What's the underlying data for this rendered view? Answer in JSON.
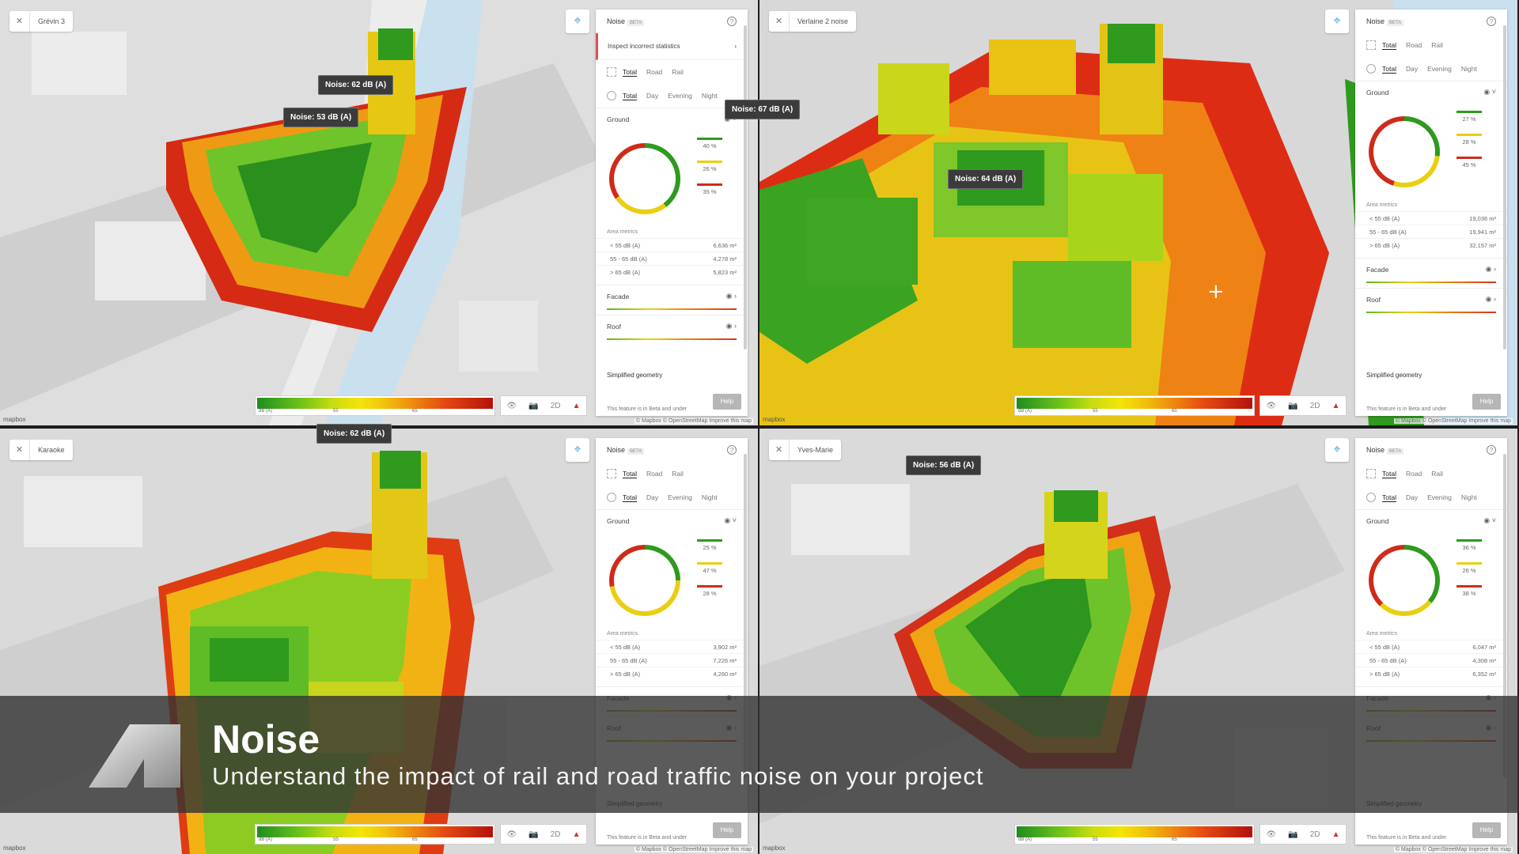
{
  "panel_common": {
    "title": "Noise",
    "beta": "BETA",
    "help_icon": "?",
    "source_tabs": [
      "Total",
      "Road",
      "Rail"
    ],
    "time_tabs": [
      "Total",
      "Day",
      "Evening",
      "Night"
    ],
    "ground_label": "Ground",
    "area_metrics_label": "Area metrics",
    "metric_labels": [
      "< 55 dB (A)",
      "55 - 65 dB (A)",
      "> 65 dB (A)"
    ],
    "facade_label": "Facade",
    "roof_label": "Roof",
    "simplified_geometry": "Simplified geometry",
    "help_label": "Help",
    "beta_note": "This feature is in Beta and under",
    "legend_unit": "dB (A)",
    "legend_ticks": [
      "55",
      "65"
    ],
    "mapbox_label": "mapbox",
    "attribution": "© Mapbox © OpenStreetMap Improve this map",
    "view_2d": "2D"
  },
  "colors": {
    "green": "#2e9a1e",
    "yellow": "#e9cf10",
    "red": "#cf2b1a"
  },
  "quadrants": [
    {
      "site_name": "Grévin 3",
      "inspect_label": "Inspect incorrect statistics",
      "ground_pcts": [
        "40 %",
        "26 %",
        "35 %"
      ],
      "ground_fracs": [
        0.4,
        0.26,
        0.35
      ],
      "metric_values": [
        "6,636 m²",
        "4,278 m²",
        "5,823 m²"
      ],
      "tooltips": [
        "Noise: 62 dB (A)",
        "Noise: 53 dB (A)"
      ]
    },
    {
      "site_name": "Verlaine 2 noise",
      "ground_pcts": [
        "27 %",
        "28 %",
        "45 %"
      ],
      "ground_fracs": [
        0.27,
        0.28,
        0.45
      ],
      "metric_values": [
        "19,036 m²",
        "19,941 m²",
        "32,157 m²"
      ],
      "tooltips": [
        "Noise: 67 dB (A)",
        "Noise: 64 dB (A)"
      ]
    },
    {
      "site_name": "Karaoke",
      "ground_pcts": [
        "25 %",
        "47 %",
        "28 %"
      ],
      "ground_fracs": [
        0.25,
        0.47,
        0.28
      ],
      "metric_values": [
        "3,902 m²",
        "7,226 m²",
        "4,260 m²"
      ],
      "tooltips": [
        "Noise: 62 dB (A)"
      ]
    },
    {
      "site_name": "Yves-Marie",
      "ground_pcts": [
        "36 %",
        "26 %",
        "38 %"
      ],
      "ground_fracs": [
        0.36,
        0.26,
        0.38
      ],
      "metric_values": [
        "6,047 m²",
        "4,308 m²",
        "6,352 m²"
      ],
      "tooltips": [
        "Noise: 56 dB (A)"
      ]
    }
  ],
  "banner": {
    "title": "Noise",
    "subtitle": "Understand the impact of rail and road traffic noise on your project"
  }
}
